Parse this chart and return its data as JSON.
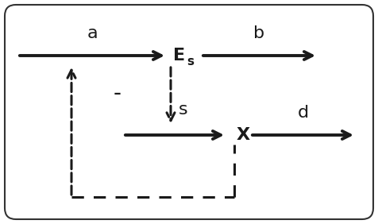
{
  "bg_color": "#ffffff",
  "border_color": "#333333",
  "arrow_color": "#1a1a1a",
  "dashed_color": "#1a1a1a",
  "solid_lw": 2.8,
  "dashed_lw": 2.2,
  "arrowhead_size": 18,
  "fig_w": 4.76,
  "fig_h": 2.82,
  "label_a": "a",
  "label_b": "b",
  "label_s": "s",
  "label_d": "d",
  "label_Es_main": "E",
  "label_Es_sub": "s",
  "label_X": "X",
  "label_minus": "-",
  "xlim": [
    0,
    476
  ],
  "ylim": [
    0,
    282
  ]
}
